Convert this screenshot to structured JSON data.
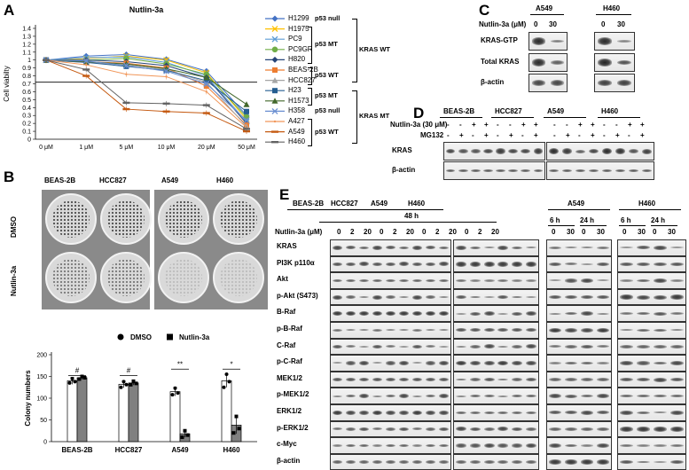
{
  "panel_letters": {
    "a": "A",
    "b": "B",
    "c": "C",
    "d": "D",
    "e": "E"
  },
  "chart_data": [
    {
      "type": "line",
      "title": "Nutlin-3a",
      "ylabel": "Cell viabilty",
      "xlabel": "",
      "categories": [
        "0 μM",
        "1 μM",
        "5 μM",
        "10 μM",
        "20 μM",
        "50 μM"
      ],
      "ylim": [
        0,
        1.4
      ],
      "yticks": [
        0,
        0.1,
        0.2,
        0.3,
        0.4,
        0.5,
        0.6,
        0.7,
        0.8,
        0.9,
        1,
        1.1,
        1.2,
        1.3,
        1.4
      ],
      "reference_line": 0.72,
      "legend_position": "right",
      "series": [
        {
          "name": "H1299",
          "color": "#4472c4",
          "marker": "diamond",
          "values": [
            1.0,
            1.05,
            1.07,
            1.01,
            0.86,
            0.3
          ]
        },
        {
          "name": "H1975",
          "color": "#ffc000",
          "marker": "x",
          "values": [
            1.0,
            1.02,
            1.05,
            1.0,
            0.84,
            0.25
          ]
        },
        {
          "name": "PC9",
          "color": "#5b9bd5",
          "marker": "x",
          "values": [
            1.0,
            1.03,
            1.04,
            0.97,
            0.8,
            0.22
          ]
        },
        {
          "name": "PC9GR",
          "color": "#70ad47",
          "marker": "circle",
          "values": [
            1.0,
            1.0,
            1.02,
            0.95,
            0.82,
            0.28
          ]
        },
        {
          "name": "H820",
          "color": "#264478",
          "marker": "diamond",
          "values": [
            1.0,
            1.0,
            0.98,
            0.93,
            0.78,
            0.2
          ]
        },
        {
          "name": "BEAS-2B",
          "color": "#ed7d31",
          "marker": "square",
          "values": [
            1.0,
            0.98,
            0.96,
            0.9,
            0.67,
            0.18
          ]
        },
        {
          "name": "HCC827",
          "color": "#a5a5a5",
          "marker": "triangle",
          "values": [
            1.0,
            0.97,
            0.94,
            0.88,
            0.72,
            0.16
          ]
        },
        {
          "name": "H23",
          "color": "#255e91",
          "marker": "square",
          "values": [
            1.0,
            0.97,
            0.92,
            0.87,
            0.74,
            0.35
          ]
        },
        {
          "name": "H1573",
          "color": "#43682b",
          "marker": "triangle",
          "values": [
            1.0,
            0.98,
            0.95,
            0.89,
            0.78,
            0.44
          ]
        },
        {
          "name": "H358",
          "color": "#698ed0",
          "marker": "x",
          "values": [
            1.0,
            0.99,
            0.93,
            0.86,
            0.7,
            0.24
          ]
        },
        {
          "name": "A427",
          "color": "#f1975a",
          "marker": "none",
          "values": [
            1.0,
            0.94,
            0.82,
            0.79,
            0.6,
            0.15
          ]
        },
        {
          "name": "A549",
          "color": "#c55a11",
          "marker": "dash",
          "values": [
            1.0,
            0.8,
            0.38,
            0.35,
            0.33,
            0.1
          ]
        },
        {
          "name": "H460",
          "color": "#636363",
          "marker": "dash",
          "values": [
            1.0,
            0.88,
            0.46,
            0.45,
            0.43,
            0.13
          ]
        }
      ],
      "groups": [
        {
          "label": "p53 null",
          "members": [
            "H1299"
          ]
        },
        {
          "label": "p53 MT",
          "members": [
            "H1975",
            "PC9",
            "PC9GR",
            "H820"
          ]
        },
        {
          "label": "p53 WT",
          "members": [
            "BEAS-2B",
            "HCC827"
          ]
        },
        {
          "label": "p53 MT",
          "members": [
            "H23",
            "H1573"
          ]
        },
        {
          "label": "p53 null",
          "members": [
            "H358"
          ]
        },
        {
          "label": "p53 WT",
          "members": [
            "A427",
            "A549",
            "H460"
          ]
        }
      ],
      "kras_groups": [
        "KRAS WT",
        "KRAS MT"
      ]
    },
    {
      "type": "bar",
      "title": "",
      "ylabel": "Colony numbers",
      "xlabel": "",
      "categories": [
        "BEAS-2B",
        "HCC827",
        "A549",
        "H460"
      ],
      "ylim": [
        0,
        200
      ],
      "yticks": [
        0,
        50,
        100,
        150,
        200
      ],
      "legend_position": "top",
      "series": [
        {
          "name": "DMSO",
          "color": "#ffffff",
          "values": [
            140,
            132,
            115,
            140
          ],
          "errors": [
            8,
            8,
            10,
            15
          ],
          "points": [
            [
              135,
              145,
              138
            ],
            [
              125,
              138,
              131
            ],
            [
              108,
              123,
              112
            ],
            [
              125,
              155,
              138
            ]
          ]
        },
        {
          "name": "Nutlin-3a",
          "color": "#808080",
          "values": [
            147,
            135,
            18,
            38
          ],
          "errors": [
            4,
            5,
            8,
            20
          ],
          "points": [
            [
              144,
              150,
              147
            ],
            [
              131,
              139,
              134
            ],
            [
              10,
              25,
              15
            ],
            [
              20,
              58,
              30
            ]
          ]
        }
      ],
      "significance": [
        "#",
        "#",
        "**",
        "*"
      ]
    }
  ],
  "panelB": {
    "cells": [
      "BEAS-2B",
      "HCC827",
      "A549",
      "H460"
    ],
    "rows": [
      "DMSO",
      "Nutlin-3a"
    ]
  },
  "panelC": {
    "lines": [
      "A549",
      "H460"
    ],
    "treat": "Nutlin-3a (μM)",
    "doses": [
      "0",
      "30",
      "0",
      "30"
    ],
    "rows": [
      "KRAS-GTP",
      "Total KRAS",
      "β-actin"
    ]
  },
  "panelD": {
    "lines": [
      "BEAS-2B",
      "HCC827",
      "A549",
      "H460"
    ],
    "treat_label": "Nutlin-3a (30 μM)",
    "mg_label": "MG132",
    "treat_signs": [
      "-",
      "-",
      "+",
      "+",
      "-",
      "-",
      "+",
      "+",
      "-",
      "-",
      "+",
      "+",
      "-",
      "-",
      "+",
      "+"
    ],
    "mg_signs": [
      "-",
      "+",
      "-",
      "+",
      "-",
      "+",
      "-",
      "+",
      "-",
      "+",
      "-",
      "+",
      "-",
      "+",
      "-",
      "+"
    ],
    "rows": [
      "KRAS",
      "β-actin"
    ]
  },
  "panelE": {
    "lines_left": [
      "BEAS-2B",
      "HCC827",
      "A549",
      "H460"
    ],
    "time_left": "48 h",
    "treat_label": "Nutlin-3a (μM)",
    "doses_left": [
      "0",
      "2",
      "20",
      "0",
      "2",
      "20",
      "0",
      "2",
      "20",
      "0",
      "2",
      "20"
    ],
    "right_blocks": [
      {
        "line": "A549",
        "times": [
          "6 h",
          "24 h"
        ],
        "doses": [
          "0",
          "30",
          "0",
          "30"
        ]
      },
      {
        "line": "H460",
        "times": [
          "6 h",
          "24 h"
        ],
        "doses": [
          "0",
          "30",
          "0",
          "30"
        ]
      }
    ],
    "rows": [
      "KRAS",
      "PI3K p110α",
      "Akt",
      "p-Akt (S473)",
      "B-Raf",
      "p-B-Raf",
      "C-Raf",
      "p-C-Raf",
      "MEK1/2",
      "p-MEK1/2",
      "ERK1/2",
      "p-ERK1/2",
      "c-Myc",
      "β-actin"
    ]
  }
}
